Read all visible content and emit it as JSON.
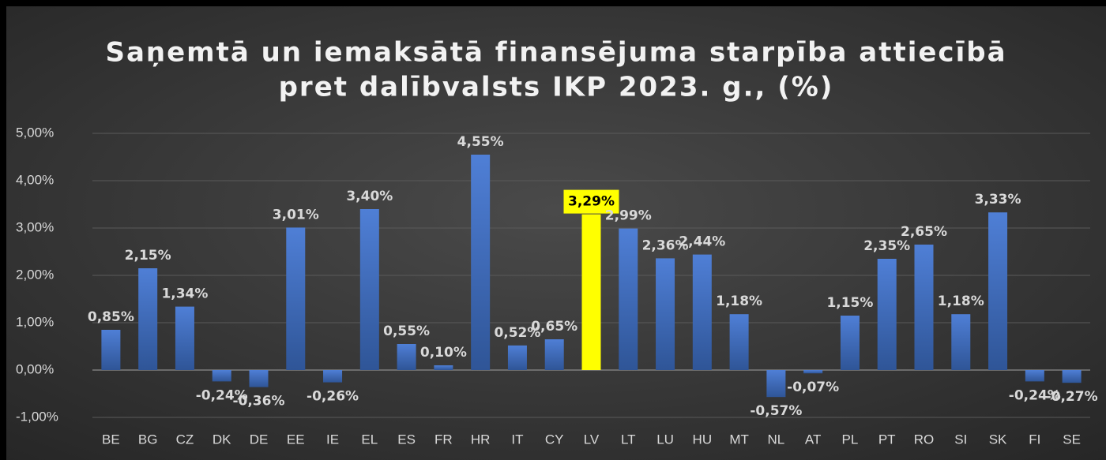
{
  "chart_data": {
    "type": "bar",
    "title": [
      "Saņemtā un iemaksātā finansējuma starpība attiecībā",
      "pret dalībvalsts IKP 2023. g., (%)"
    ],
    "categories": [
      "BE",
      "BG",
      "CZ",
      "DK",
      "DE",
      "EE",
      "IE",
      "EL",
      "ES",
      "FR",
      "HR",
      "IT",
      "CY",
      "LV",
      "LT",
      "LU",
      "HU",
      "MT",
      "NL",
      "AT",
      "PL",
      "PT",
      "RO",
      "SI",
      "SK",
      "FI",
      "SE"
    ],
    "values": [
      0.85,
      2.15,
      1.34,
      -0.24,
      -0.36,
      3.01,
      -0.26,
      3.4,
      0.55,
      0.1,
      4.55,
      0.52,
      0.65,
      3.29,
      2.99,
      2.36,
      2.44,
      1.18,
      -0.57,
      -0.07,
      1.15,
      2.35,
      2.65,
      1.18,
      3.33,
      -0.24,
      -0.27
    ],
    "value_labels": [
      "0,85%",
      "2,15%",
      "1,34%",
      "-0,24%",
      "-0,36%",
      "3,01%",
      "-0,26%",
      "3,40%",
      "0,55%",
      "0,10%",
      "4,55%",
      "0,52%",
      "0,65%",
      "3,29%",
      "2,99%",
      "2,36%",
      "2,44%",
      "1,18%",
      "-0,57%",
      "-0,07%",
      "1,15%",
      "2,35%",
      "2,65%",
      "1,18%",
      "3,33%",
      "-0,24%",
      "-0,27%"
    ],
    "colors": [
      "#4472c4",
      "#4472c4",
      "#4472c4",
      "#4472c4",
      "#4472c4",
      "#4472c4",
      "#4472c4",
      "#4472c4",
      "#4472c4",
      "#4472c4",
      "#4472c4",
      "#4472c4",
      "#4472c4",
      "#ffff00",
      "#4472c4",
      "#4472c4",
      "#4472c4",
      "#4472c4",
      "#4472c4",
      "#4472c4",
      "#4472c4",
      "#4472c4",
      "#4472c4",
      "#4472c4",
      "#4472c4",
      "#4472c4",
      "#4472c4"
    ],
    "ylim": [
      -1,
      5
    ],
    "yticks": [
      {
        "value": -1,
        "label": "-1,00%"
      },
      {
        "value": 0,
        "label": "0,00%"
      },
      {
        "value": 1,
        "label": "1,00%"
      },
      {
        "value": 2,
        "label": "2,00%"
      },
      {
        "value": 3,
        "label": "3,00%"
      },
      {
        "value": 4,
        "label": "4,00%"
      },
      {
        "value": 5,
        "label": "5,00%"
      }
    ],
    "grid": true
  }
}
